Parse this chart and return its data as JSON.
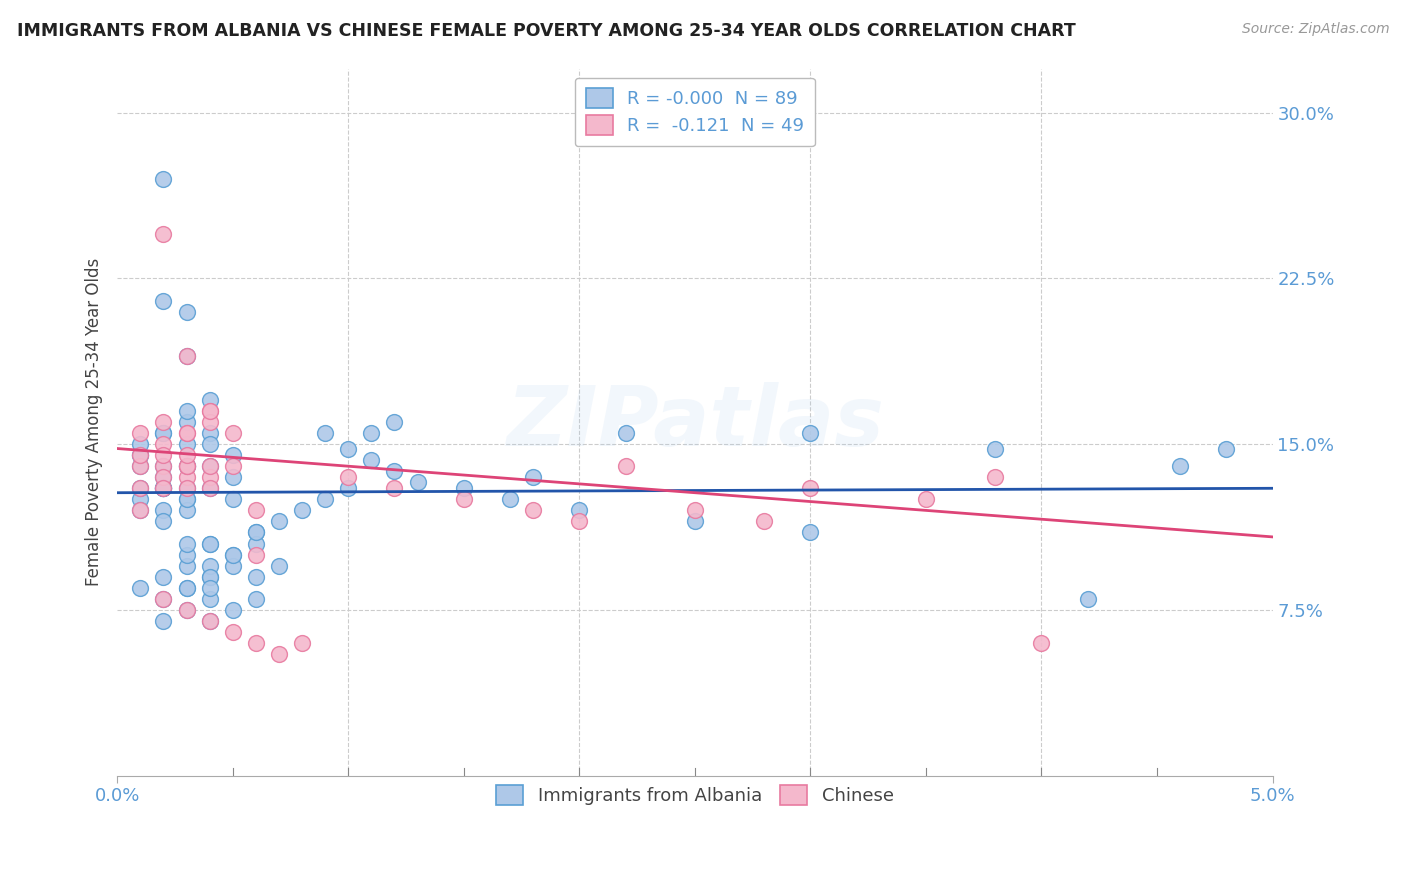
{
  "title": "IMMIGRANTS FROM ALBANIA VS CHINESE FEMALE POVERTY AMONG 25-34 YEAR OLDS CORRELATION CHART",
  "source": "Source: ZipAtlas.com",
  "ylabel": "Female Poverty Among 25-34 Year Olds",
  "xlim": [
    0.0,
    0.05
  ],
  "ylim": [
    0.0,
    0.32
  ],
  "yticks": [
    0.0,
    0.075,
    0.15,
    0.225,
    0.3
  ],
  "ytick_labels": [
    "",
    "7.5%",
    "15.0%",
    "22.5%",
    "30.0%"
  ],
  "xtick_left_label": "0.0%",
  "xtick_right_label": "5.0%",
  "legend_label1": "Immigrants from Albania",
  "legend_label2": "Chinese",
  "r1": "-0.000",
  "n1": "89",
  "r2": "-0.121",
  "n2": "49",
  "color1": "#aec8e8",
  "color2": "#f4b8cc",
  "edge_color1": "#5a9fd4",
  "edge_color2": "#e87aa0",
  "line_color1": "#2255aa",
  "line_color2": "#dd4477",
  "watermark": "ZIPatlas",
  "background_color": "#ffffff",
  "grid_color": "#cccccc",
  "tick_color": "#5b9bd5",
  "title_color": "#222222",
  "source_color": "#999999",
  "ylabel_color": "#444444",
  "scatter1_x": [
    0.001,
    0.002,
    0.001,
    0.003,
    0.002,
    0.001,
    0.002,
    0.003,
    0.001,
    0.002,
    0.001,
    0.002,
    0.003,
    0.002,
    0.003,
    0.001,
    0.002,
    0.001,
    0.002,
    0.003,
    0.002,
    0.003,
    0.004,
    0.003,
    0.004,
    0.002,
    0.003,
    0.004,
    0.003,
    0.002,
    0.001,
    0.002,
    0.003,
    0.002,
    0.003,
    0.004,
    0.003,
    0.004,
    0.004,
    0.003,
    0.005,
    0.004,
    0.003,
    0.004,
    0.005,
    0.004,
    0.005,
    0.006,
    0.006,
    0.005,
    0.002,
    0.003,
    0.004,
    0.003,
    0.004,
    0.005,
    0.004,
    0.005,
    0.006,
    0.004,
    0.006,
    0.007,
    0.005,
    0.006,
    0.007,
    0.008,
    0.009,
    0.01,
    0.011,
    0.012,
    0.009,
    0.01,
    0.011,
    0.012,
    0.013,
    0.015,
    0.017,
    0.02,
    0.025,
    0.03,
    0.002,
    0.003,
    0.018,
    0.022,
    0.03,
    0.038,
    0.042,
    0.046,
    0.048
  ],
  "scatter1_y": [
    0.14,
    0.14,
    0.145,
    0.13,
    0.135,
    0.125,
    0.13,
    0.14,
    0.145,
    0.13,
    0.15,
    0.155,
    0.15,
    0.12,
    0.125,
    0.12,
    0.115,
    0.13,
    0.13,
    0.14,
    0.215,
    0.21,
    0.155,
    0.16,
    0.17,
    0.155,
    0.165,
    0.15,
    0.12,
    0.13,
    0.085,
    0.09,
    0.095,
    0.08,
    0.085,
    0.09,
    0.1,
    0.105,
    0.095,
    0.105,
    0.1,
    0.105,
    0.125,
    0.13,
    0.135,
    0.14,
    0.145,
    0.11,
    0.105,
    0.125,
    0.07,
    0.075,
    0.08,
    0.085,
    0.09,
    0.095,
    0.07,
    0.075,
    0.08,
    0.085,
    0.09,
    0.095,
    0.1,
    0.11,
    0.115,
    0.12,
    0.125,
    0.13,
    0.155,
    0.16,
    0.155,
    0.148,
    0.143,
    0.138,
    0.133,
    0.13,
    0.125,
    0.12,
    0.115,
    0.11,
    0.27,
    0.19,
    0.135,
    0.155,
    0.155,
    0.148,
    0.08,
    0.14,
    0.148
  ],
  "scatter2_x": [
    0.001,
    0.002,
    0.001,
    0.003,
    0.002,
    0.001,
    0.002,
    0.003,
    0.001,
    0.002,
    0.001,
    0.002,
    0.003,
    0.002,
    0.003,
    0.004,
    0.003,
    0.004,
    0.003,
    0.002,
    0.003,
    0.004,
    0.003,
    0.004,
    0.005,
    0.004,
    0.005,
    0.006,
    0.004,
    0.006,
    0.01,
    0.012,
    0.015,
    0.018,
    0.02,
    0.022,
    0.025,
    0.028,
    0.03,
    0.035,
    0.002,
    0.003,
    0.004,
    0.005,
    0.006,
    0.007,
    0.008,
    0.038,
    0.04
  ],
  "scatter2_y": [
    0.14,
    0.245,
    0.13,
    0.135,
    0.14,
    0.12,
    0.135,
    0.14,
    0.145,
    0.13,
    0.155,
    0.16,
    0.14,
    0.15,
    0.19,
    0.135,
    0.145,
    0.14,
    0.13,
    0.145,
    0.155,
    0.165,
    0.155,
    0.16,
    0.155,
    0.165,
    0.14,
    0.12,
    0.13,
    0.1,
    0.135,
    0.13,
    0.125,
    0.12,
    0.115,
    0.14,
    0.12,
    0.115,
    0.13,
    0.125,
    0.08,
    0.075,
    0.07,
    0.065,
    0.06,
    0.055,
    0.06,
    0.135,
    0.06
  ],
  "line1_x0": 0.0,
  "line1_x1": 0.05,
  "line1_y0": 0.128,
  "line1_y1": 0.13,
  "line2_x0": 0.0,
  "line2_x1": 0.05,
  "line2_y0": 0.148,
  "line2_y1": 0.108
}
